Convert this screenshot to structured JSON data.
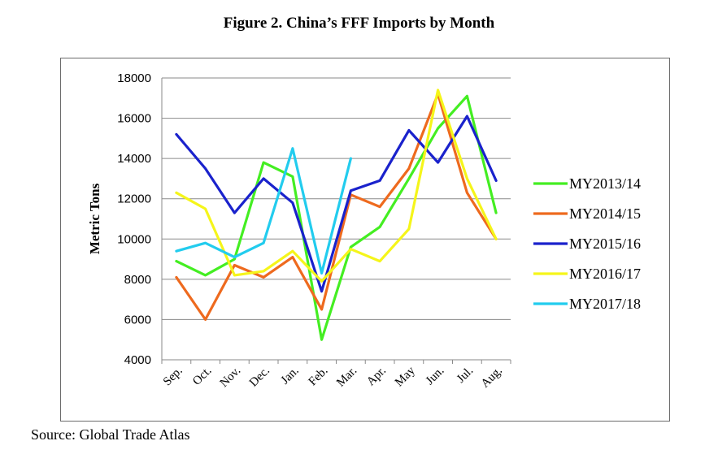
{
  "title": "Figure 2. China’s FFF Imports by Month",
  "source": "Source: Global Trade Atlas",
  "chart_data": {
    "type": "line",
    "ylabel": "Metric Tons",
    "xlabel": "",
    "ylim": [
      4000,
      18000
    ],
    "yticks": [
      4000,
      6000,
      8000,
      10000,
      12000,
      14000,
      16000,
      18000
    ],
    "grid": "horizontal",
    "legend_position": "right",
    "categories": [
      "Sep.",
      "Oct.",
      "Nov.",
      "Dec.",
      "Jan.",
      "Feb.",
      "Mar.",
      "Apr.",
      "May",
      "Jun.",
      "Jul.",
      "Aug."
    ],
    "series": [
      {
        "name": "MY2013/14",
        "color": "#44ee22",
        "values": [
          8900,
          8200,
          9000,
          13800,
          13100,
          5000,
          9600,
          10600,
          13000,
          15500,
          17100,
          11300
        ]
      },
      {
        "name": "MY2014/15",
        "color": "#ee6a1e",
        "values": [
          8100,
          6000,
          8700,
          8100,
          9100,
          6500,
          12200,
          11600,
          13500,
          17200,
          12300,
          10000
        ]
      },
      {
        "name": "MY2015/16",
        "color": "#1a22cc",
        "values": [
          15200,
          13500,
          11300,
          13000,
          11800,
          7400,
          12400,
          12900,
          15400,
          13800,
          16100,
          12900
        ]
      },
      {
        "name": "MY2016/17",
        "color": "#f5f51a",
        "values": [
          12300,
          11500,
          8200,
          8400,
          9400,
          7900,
          9500,
          8900,
          10500,
          17400,
          13000,
          10000
        ]
      },
      {
        "name": "MY2017/18",
        "color": "#22ccee",
        "values": [
          9400,
          9800,
          9100,
          9800,
          14500,
          8300,
          14000,
          null,
          null,
          null,
          null,
          null
        ]
      }
    ]
  }
}
